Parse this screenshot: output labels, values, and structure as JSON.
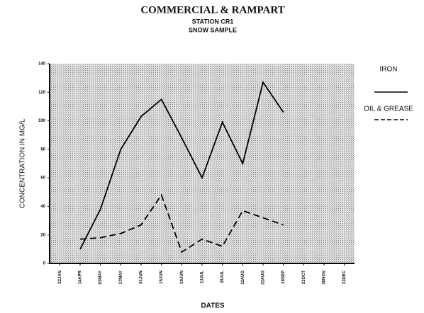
{
  "chart_data": {
    "type": "line",
    "title": "COMMERCIAL & RAMPART",
    "subtitle": "STATION CR1",
    "subtitle2": "SNOW SAMPLE",
    "x_label": "DATES",
    "y_label": "CONCENTRATION IN MG/L",
    "categories": [
      "22JAN",
      "14APR",
      "03MAY",
      "17MAY",
      "01JUN",
      "15JUN",
      "29JUN",
      "13JUL",
      "28JUL",
      "11AUG",
      "31AUG",
      "28SEP",
      "31OCT",
      "30NOV",
      "31DEC"
    ],
    "series": [
      {
        "name": "IRON",
        "color": "#000000",
        "dash": false,
        "values": [
          null,
          10,
          38,
          80,
          103,
          115,
          88,
          60,
          99,
          70,
          127,
          106,
          null,
          null,
          null
        ]
      },
      {
        "name": "OIL & GREASE",
        "color": "#000000",
        "dash": true,
        "values": [
          null,
          17,
          18,
          21,
          27,
          48,
          8,
          17,
          12,
          37,
          32,
          27,
          null,
          null,
          null
        ]
      }
    ],
    "ylim": [
      0,
      140
    ],
    "yticks": [
      0,
      20,
      40,
      60,
      80,
      100,
      120,
      140
    ]
  }
}
